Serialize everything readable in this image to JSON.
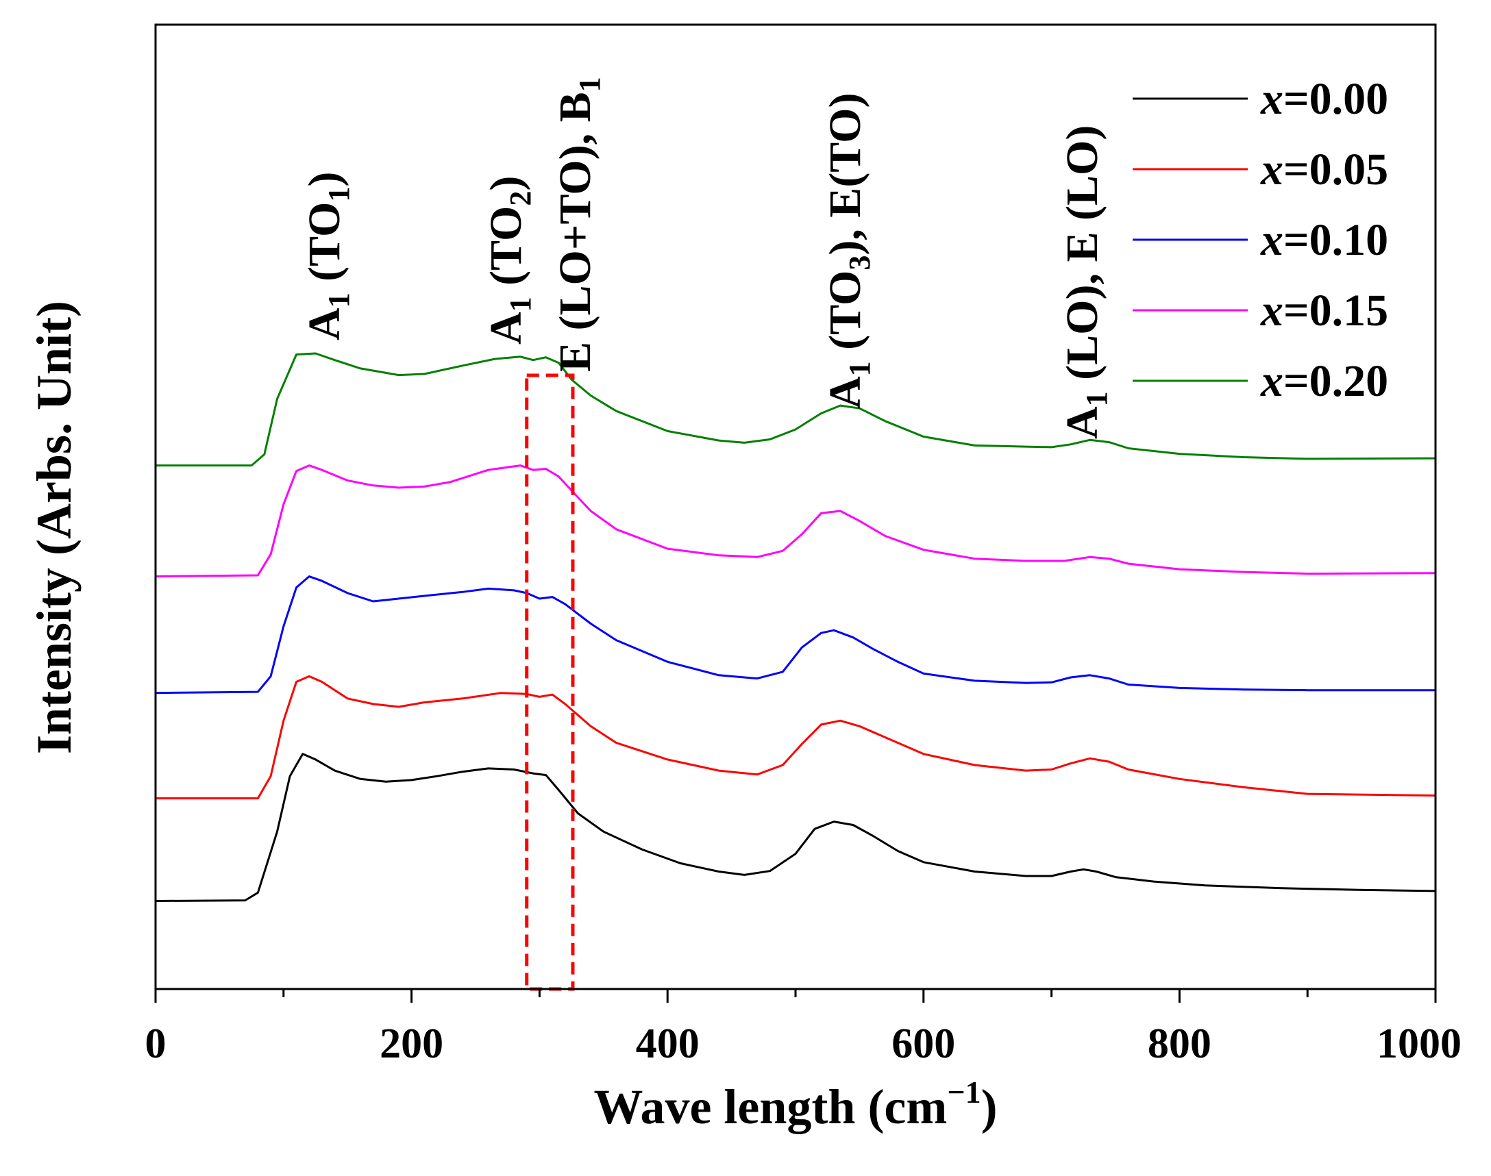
{
  "chart_data": {
    "type": "line",
    "title": "",
    "xlabel": "Wave length (cm",
    "xlabel_sup": "−1",
    "xlabel_close": ")",
    "ylabel": "Intensity (Arbs. Unit)",
    "xlim": [
      0,
      1000
    ],
    "ylim": [
      0,
      100
    ],
    "x_ticks": [
      0,
      200,
      400,
      600,
      800,
      1000
    ],
    "x_tick_labels": [
      "0",
      "200",
      "400",
      "600",
      "800",
      "1000"
    ],
    "legend_position": "top-right",
    "highlight_region": {
      "x": [
        290,
        326
      ],
      "color": "#ff0000",
      "style": "dashed"
    },
    "series": [
      {
        "name": "x=0.00",
        "var": "x",
        "value": "=0.00",
        "color": "#000000",
        "x": [
          0,
          70,
          80,
          95,
          105,
          115,
          125,
          140,
          160,
          180,
          200,
          220,
          240,
          260,
          280,
          295,
          305,
          315,
          330,
          350,
          380,
          410,
          440,
          460,
          480,
          500,
          515,
          530,
          545,
          560,
          580,
          600,
          640,
          680,
          700,
          715,
          725,
          735,
          750,
          780,
          820,
          880,
          940,
          1000
        ],
        "y": [
          5.5,
          5.6,
          7,
          18,
          28,
          32,
          31,
          29,
          27.5,
          27,
          27.3,
          28,
          28.8,
          29.4,
          29.2,
          28.5,
          28.2,
          25.5,
          21.3,
          18,
          14.8,
          12.3,
          10.8,
          10.2,
          10.9,
          14,
          18.5,
          19.8,
          19.2,
          17.3,
          14.5,
          12.5,
          10.8,
          10,
          10,
          10.8,
          11.2,
          10.8,
          9.8,
          9,
          8.3,
          7.8,
          7.5,
          7.3
        ]
      },
      {
        "name": "x=0.05",
        "var": "x",
        "value": "=0.05",
        "color": "#ff0000",
        "x": [
          0,
          80,
          90,
          100,
          110,
          120,
          130,
          150,
          170,
          190,
          210,
          240,
          270,
          290,
          300,
          310,
          320,
          340,
          360,
          400,
          440,
          470,
          490,
          505,
          520,
          535,
          550,
          570,
          600,
          640,
          680,
          700,
          715,
          730,
          745,
          760,
          800,
          850,
          900,
          1000
        ],
        "y": [
          24,
          24,
          28,
          38,
          45,
          46,
          45,
          42,
          41,
          40.5,
          41.3,
          42,
          43,
          42.8,
          42.3,
          42.7,
          41,
          37,
          34,
          31,
          29,
          28.3,
          30,
          33.8,
          37.3,
          38,
          37,
          35,
          32,
          30,
          29,
          29.2,
          30.3,
          31.2,
          30.6,
          29.2,
          27.5,
          26,
          24.8,
          24.5
        ]
      },
      {
        "name": "x=0.10",
        "var": "x",
        "value": "=0.10",
        "color": "#0000ff",
        "x": [
          0,
          80,
          90,
          100,
          110,
          120,
          130,
          150,
          170,
          190,
          210,
          240,
          260,
          280,
          290,
          300,
          310,
          320,
          340,
          360,
          400,
          440,
          470,
          490,
          505,
          520,
          530,
          545,
          560,
          580,
          600,
          640,
          680,
          700,
          715,
          730,
          745,
          760,
          800,
          850,
          900,
          1000
        ],
        "y": [
          43,
          43.2,
          46,
          55,
          62,
          64,
          63.2,
          61,
          59.5,
          60,
          60.5,
          61.2,
          61.8,
          61.5,
          61,
          60,
          60.3,
          59,
          55.5,
          52.5,
          48.6,
          46.2,
          45.6,
          46.8,
          51.2,
          53.8,
          54.3,
          53,
          51,
          48.6,
          46.5,
          45.2,
          44.8,
          44.9,
          45.8,
          46.2,
          45.6,
          44.5,
          43.9,
          43.6,
          43.5,
          43.5
        ]
      },
      {
        "name": "x=0.15",
        "var": "x",
        "value": "=0.15",
        "color": "#ff00ff",
        "x": [
          0,
          80,
          90,
          100,
          110,
          120,
          130,
          150,
          170,
          190,
          210,
          230,
          260,
          285,
          295,
          305,
          315,
          325,
          340,
          360,
          400,
          440,
          470,
          490,
          505,
          520,
          535,
          550,
          570,
          600,
          640,
          680,
          710,
          730,
          745,
          760,
          800,
          850,
          900,
          1000
        ],
        "y": [
          64,
          64.2,
          68,
          77,
          83,
          84,
          83.2,
          81.3,
          80.4,
          80,
          80.2,
          81,
          83.2,
          84,
          83.2,
          83.4,
          82,
          79.5,
          75.8,
          72.5,
          69,
          67.8,
          67.5,
          68.6,
          71.6,
          75.4,
          75.8,
          74,
          71.3,
          68.8,
          67.2,
          66.8,
          66.8,
          67.5,
          67.2,
          66.3,
          65.3,
          64.8,
          64.5,
          64.6
        ]
      },
      {
        "name": "x=0.20",
        "var": "x",
        "value": "=0.20",
        "color": "#008000",
        "x": [
          0,
          75,
          85,
          95,
          110,
          125,
          140,
          160,
          190,
          210,
          240,
          265,
          285,
          295,
          305,
          315,
          325,
          340,
          360,
          400,
          440,
          460,
          480,
          500,
          520,
          535,
          550,
          570,
          600,
          640,
          680,
          700,
          715,
          730,
          745,
          760,
          800,
          850,
          900,
          1000
        ],
        "y": [
          84,
          84,
          86,
          96,
          104,
          104.2,
          103,
          101.5,
          100.3,
          100.5,
          102,
          103.2,
          103.6,
          103,
          103.5,
          102.5,
          99.5,
          96.6,
          93.8,
          90.2,
          88.5,
          88.1,
          88.7,
          90.5,
          93.4,
          94.8,
          94.3,
          92,
          89.2,
          87.6,
          87.4,
          87.3,
          87.8,
          88.6,
          88.2,
          87.1,
          86.1,
          85.5,
          85.2,
          85.3
        ]
      }
    ]
  },
  "annotations": [
    {
      "base": "A",
      "sub": "1",
      "rest": " (TO",
      "sub2": "1",
      "rest2": ")"
    },
    {
      "base": "A",
      "sub": "1",
      "rest": " (TO",
      "sub2": "2",
      "rest2": ")"
    },
    {
      "base": "E (LO+TO), B",
      "sub": "1",
      "rest": "",
      "sub2": "",
      "rest2": ""
    },
    {
      "base": "A",
      "sub": "1",
      "rest": " (TO",
      "sub2": "3",
      "rest2": "), E(TO)"
    },
    {
      "base": "A",
      "sub": "1",
      "rest": " (LO), E (LO)",
      "sub2": "",
      "rest2": ""
    }
  ]
}
